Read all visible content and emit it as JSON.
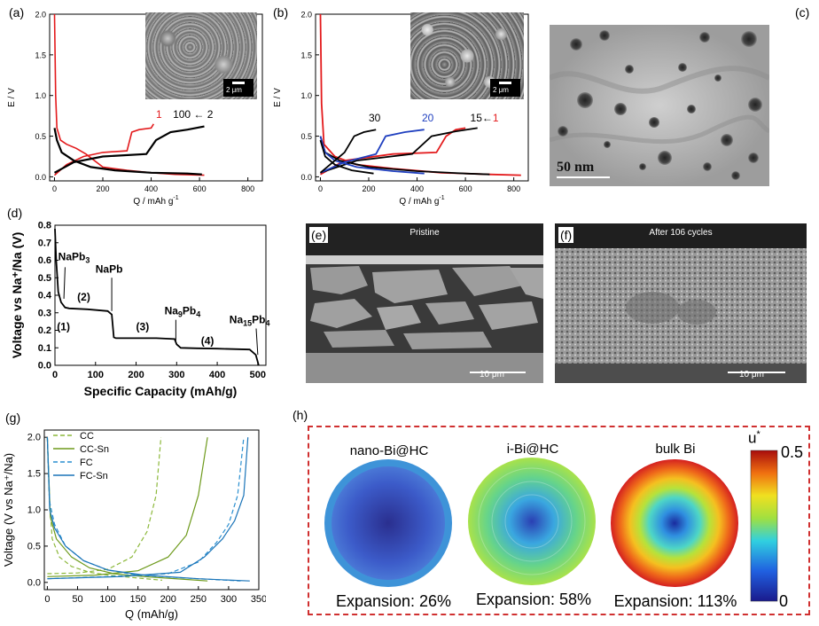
{
  "panels": {
    "a": {
      "label": "(a)",
      "chart_data": {
        "type": "line",
        "xlabel": "Q / mAh g",
        "xlabel_sup": "-1",
        "ylabel": "E / V",
        "xlim": [
          -20,
          860
        ],
        "ylim": [
          -0.05,
          2.0
        ],
        "xticks": [
          "0",
          "200",
          "400",
          "600",
          "800"
        ],
        "yticks": [
          "0.0",
          "0.5",
          "1.0",
          "1.5",
          "2.0"
        ],
        "annotations": {
          "first": "1",
          "rest": "100 ← 2"
        },
        "inset_scalebar": "2 μm",
        "series": [
          {
            "name": "1",
            "color": "#e31a1c",
            "discharge": [
              [
                0,
                2.0
              ],
              [
                5,
                1.0
              ],
              [
                10,
                0.6
              ],
              [
                25,
                0.45
              ],
              [
                50,
                0.4
              ],
              [
                90,
                0.35
              ],
              [
                130,
                0.28
              ],
              [
                200,
                0.12
              ],
              [
                300,
                0.08
              ],
              [
                400,
                0.05
              ],
              [
                500,
                0.03
              ],
              [
                620,
                0.02
              ]
            ],
            "charge": [
              [
                0,
                0.02
              ],
              [
                50,
                0.15
              ],
              [
                120,
                0.25
              ],
              [
                200,
                0.3
              ],
              [
                300,
                0.32
              ],
              [
                320,
                0.55
              ],
              [
                350,
                0.58
              ],
              [
                400,
                0.6
              ],
              [
                410,
                0.65
              ]
            ]
          },
          {
            "name": "2-100",
            "color": "#000000",
            "discharge": [
              [
                0,
                0.6
              ],
              [
                10,
                0.45
              ],
              [
                30,
                0.3
              ],
              [
                80,
                0.2
              ],
              [
                150,
                0.12
              ],
              [
                250,
                0.08
              ],
              [
                400,
                0.05
              ],
              [
                550,
                0.04
              ],
              [
                610,
                0.03
              ]
            ],
            "charge": [
              [
                0,
                0.05
              ],
              [
                80,
                0.18
              ],
              [
                200,
                0.25
              ],
              [
                380,
                0.28
              ],
              [
                420,
                0.45
              ],
              [
                480,
                0.55
              ],
              [
                550,
                0.58
              ],
              [
                620,
                0.62
              ]
            ]
          }
        ]
      }
    },
    "b": {
      "label": "(b)",
      "chart_data": {
        "type": "line",
        "xlabel": "Q / mAh g",
        "xlabel_sup": "-1",
        "ylabel": "E / V",
        "xlim": [
          -20,
          860
        ],
        "ylim": [
          -0.05,
          2.0
        ],
        "xticks": [
          "0",
          "200",
          "400",
          "600",
          "800"
        ],
        "yticks": [
          "0.0",
          "0.5",
          "1.0",
          "1.5",
          "2.0"
        ],
        "annotations": {
          "c30": "30",
          "c20": "20",
          "c15": "15",
          "c1": "1"
        },
        "inset_scalebar": "2 μm",
        "series": [
          {
            "name": "1",
            "color": "#e31a1c",
            "discharge": [
              [
                0,
                2.0
              ],
              [
                5,
                0.9
              ],
              [
                15,
                0.4
              ],
              [
                60,
                0.25
              ],
              [
                150,
                0.15
              ],
              [
                300,
                0.1
              ],
              [
                500,
                0.05
              ],
              [
                700,
                0.03
              ],
              [
                830,
                0.02
              ]
            ],
            "charge": [
              [
                0,
                0.03
              ],
              [
                100,
                0.2
              ],
              [
                300,
                0.28
              ],
              [
                480,
                0.3
              ],
              [
                520,
                0.5
              ],
              [
                560,
                0.58
              ],
              [
                600,
                0.6
              ]
            ]
          },
          {
            "name": "15",
            "color": "#000000",
            "discharge": [
              [
                0,
                0.5
              ],
              [
                20,
                0.3
              ],
              [
                80,
                0.2
              ],
              [
                200,
                0.12
              ],
              [
                400,
                0.07
              ],
              [
                600,
                0.04
              ],
              [
                700,
                0.03
              ]
            ],
            "charge": [
              [
                0,
                0.05
              ],
              [
                150,
                0.2
              ],
              [
                380,
                0.28
              ],
              [
                460,
                0.5
              ],
              [
                560,
                0.56
              ],
              [
                650,
                0.6
              ]
            ]
          },
          {
            "name": "20",
            "color": "#1f3fbf",
            "discharge": [
              [
                0,
                0.5
              ],
              [
                20,
                0.3
              ],
              [
                60,
                0.2
              ],
              [
                150,
                0.12
              ],
              [
                300,
                0.07
              ],
              [
                430,
                0.04
              ]
            ],
            "charge": [
              [
                0,
                0.05
              ],
              [
                100,
                0.18
              ],
              [
                230,
                0.28
              ],
              [
                270,
                0.5
              ],
              [
                350,
                0.55
              ],
              [
                430,
                0.58
              ]
            ]
          },
          {
            "name": "30",
            "color": "#000000",
            "discharge": [
              [
                0,
                0.45
              ],
              [
                20,
                0.25
              ],
              [
                60,
                0.15
              ],
              [
                130,
                0.08
              ],
              [
                220,
                0.04
              ]
            ],
            "charge": [
              [
                0,
                0.05
              ],
              [
                60,
                0.2
              ],
              [
                100,
                0.3
              ],
              [
                140,
                0.5
              ],
              [
                180,
                0.55
              ],
              [
                230,
                0.58
              ]
            ]
          }
        ]
      }
    },
    "c": {
      "label": "(c)",
      "scalebar": "50 nm"
    },
    "d": {
      "label": "(d)",
      "chart_data": {
        "type": "line",
        "xlabel": "Specific Capacity (mAh/g)",
        "ylabel": "Voltage vs Na⁺/Na (V)",
        "xlim": [
          0,
          520
        ],
        "ylim": [
          0.0,
          0.8
        ],
        "xticks": [
          "0",
          "100",
          "200",
          "300",
          "400",
          "500"
        ],
        "yticks": [
          "0.0",
          "0.1",
          "0.2",
          "0.3",
          "0.4",
          "0.5",
          "0.6",
          "0.7",
          "0.8"
        ],
        "phases": [
          {
            "name": "NaPb",
            "sub": "3",
            "step": "(1)"
          },
          {
            "name": "NaPb",
            "sub": "",
            "step": "(2)"
          },
          {
            "name": "Na",
            "sub1": "9",
            "mid": "Pb",
            "sub2": "4",
            "step": "(3)"
          },
          {
            "name": "Na",
            "sub1": "15",
            "mid": "Pb",
            "sub2": "4",
            "step": "(4)"
          }
        ],
        "series": [
          {
            "name": "curve",
            "color": "#000000",
            "points": [
              [
                0,
                0.78
              ],
              [
                3,
                0.6
              ],
              [
                8,
                0.42
              ],
              [
                15,
                0.36
              ],
              [
                25,
                0.33
              ],
              [
                35,
                0.325
              ],
              [
                80,
                0.32
              ],
              [
                130,
                0.31
              ],
              [
                140,
                0.29
              ],
              [
                145,
                0.16
              ],
              [
                150,
                0.155
              ],
              [
                250,
                0.155
              ],
              [
                295,
                0.15
              ],
              [
                300,
                0.12
              ],
              [
                310,
                0.1
              ],
              [
                350,
                0.097
              ],
              [
                400,
                0.095
              ],
              [
                480,
                0.09
              ],
              [
                495,
                0.06
              ],
              [
                500,
                0.02
              ],
              [
                502,
                0.0
              ]
            ]
          }
        ]
      }
    },
    "e": {
      "label": "(e)",
      "title": "Pristine",
      "scalebar": "10 μm"
    },
    "f": {
      "label": "(f)",
      "title": "After 106 cycles",
      "scalebar": "10 μm"
    },
    "g": {
      "label": "(g)",
      "chart_data": {
        "type": "line",
        "xlabel": "Q (mAh/g)",
        "ylabel": "Voltage (V vs Na⁺/Na)",
        "xlim": [
          -5,
          350
        ],
        "ylim": [
          -0.1,
          2.1
        ],
        "xticks": [
          "0",
          "50",
          "100",
          "150",
          "200",
          "250",
          "300",
          "350"
        ],
        "yticks": [
          "0.0",
          "0.5",
          "1.0",
          "1.5",
          "2.0"
        ],
        "series": [
          {
            "name": "CC",
            "color": "#8cb83a",
            "dash": true,
            "discharge": [
              [
                0,
                2.0
              ],
              [
                3,
                1.2
              ],
              [
                8,
                0.6
              ],
              [
                20,
                0.35
              ],
              [
                40,
                0.22
              ],
              [
                70,
                0.14
              ],
              [
                100,
                0.1
              ],
              [
                150,
                0.06
              ],
              [
                190,
                0.03
              ]
            ],
            "charge": [
              [
                0,
                0.12
              ],
              [
                50,
                0.13
              ],
              [
                100,
                0.18
              ],
              [
                140,
                0.35
              ],
              [
                165,
                0.7
              ],
              [
                180,
                1.2
              ],
              [
                188,
                2.0
              ]
            ]
          },
          {
            "name": "CC-Sn",
            "color": "#6e9a1c",
            "dash": false,
            "discharge": [
              [
                0,
                2.0
              ],
              [
                5,
                0.9
              ],
              [
                15,
                0.6
              ],
              [
                40,
                0.35
              ],
              [
                70,
                0.2
              ],
              [
                110,
                0.12
              ],
              [
                160,
                0.08
              ],
              [
                230,
                0.04
              ],
              [
                265,
                0.02
              ]
            ],
            "charge": [
              [
                0,
                0.08
              ],
              [
                80,
                0.1
              ],
              [
                150,
                0.16
              ],
              [
                200,
                0.35
              ],
              [
                230,
                0.65
              ],
              [
                250,
                1.2
              ],
              [
                265,
                2.0
              ]
            ]
          },
          {
            "name": "FC",
            "color": "#2a8fd0",
            "dash": true,
            "discharge": [
              [
                0,
                2.0
              ],
              [
                4,
                1.1
              ],
              [
                12,
                0.8
              ],
              [
                30,
                0.5
              ],
              [
                60,
                0.3
              ],
              [
                100,
                0.17
              ],
              [
                150,
                0.1
              ],
              [
                250,
                0.05
              ],
              [
                320,
                0.02
              ]
            ],
            "charge": [
              [
                0,
                0.05
              ],
              [
                100,
                0.08
              ],
              [
                200,
                0.12
              ],
              [
                250,
                0.28
              ],
              [
                280,
                0.55
              ],
              [
                300,
                0.8
              ],
              [
                315,
                1.2
              ],
              [
                325,
                2.0
              ]
            ]
          },
          {
            "name": "FC-Sn",
            "color": "#1a74b8",
            "dash": false,
            "discharge": [
              [
                0,
                2.0
              ],
              [
                4,
                1.0
              ],
              [
                12,
                0.75
              ],
              [
                30,
                0.5
              ],
              [
                60,
                0.3
              ],
              [
                100,
                0.17
              ],
              [
                160,
                0.1
              ],
              [
                250,
                0.05
              ],
              [
                335,
                0.02
              ]
            ],
            "charge": [
              [
                0,
                0.05
              ],
              [
                120,
                0.08
              ],
              [
                220,
                0.14
              ],
              [
                260,
                0.35
              ],
              [
                290,
                0.6
              ],
              [
                310,
                0.85
              ],
              [
                325,
                1.2
              ],
              [
                332,
                2.0
              ]
            ]
          }
        ]
      }
    },
    "h": {
      "label": "(h)",
      "items": [
        {
          "title": "nano-Bi@HC",
          "caption": "Expansion: 26%"
        },
        {
          "title": "i-Bi@HC",
          "caption": "Expansion: 58%"
        },
        {
          "title": "bulk Bi",
          "caption": "Expansion: 113%"
        }
      ],
      "colorbar": {
        "label": "u",
        "label_sup": "*",
        "max": "0.5",
        "min": "0"
      }
    }
  }
}
